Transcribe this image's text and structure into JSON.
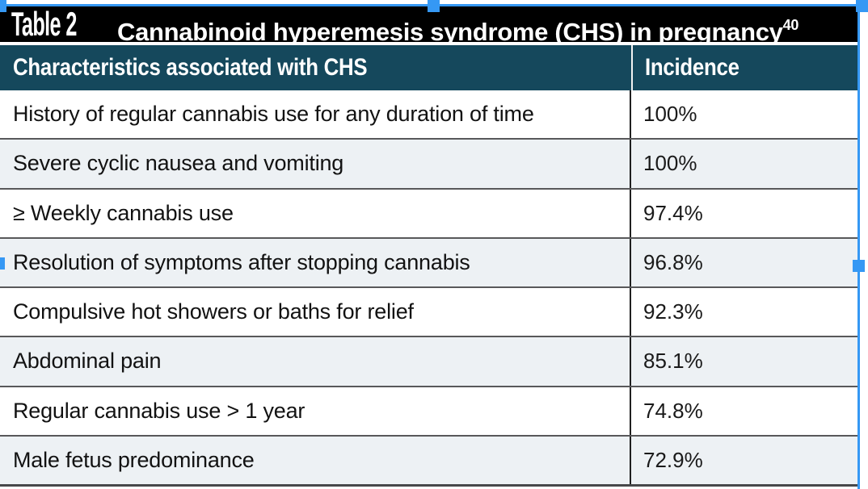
{
  "title_bar": {
    "table_label": "Table 2",
    "title": "Cannabinoid hyperemesis syndrome (CHS) in pregnancy",
    "reference": "40"
  },
  "table": {
    "columns": [
      "Characteristics associated with CHS",
      "Incidence"
    ],
    "rows": [
      {
        "characteristic": "History of regular cannabis use for any duration of time",
        "incidence": "100%"
      },
      {
        "characteristic": "Severe cyclic nausea and vomiting",
        "incidence": "100%"
      },
      {
        "characteristic": "≥ Weekly cannabis use",
        "incidence": "97.4%"
      },
      {
        "characteristic": "Resolution of symptoms after stopping cannabis",
        "incidence": "96.8%"
      },
      {
        "characteristic": "Compulsive hot showers or baths for relief",
        "incidence": "92.3%"
      },
      {
        "characteristic": "Abdominal pain",
        "incidence": "85.1%"
      },
      {
        "characteristic": "Regular cannabis use > 1 year",
        "incidence": "74.8%"
      },
      {
        "characteristic": "Male fetus predominance",
        "incidence": "72.9%"
      }
    ]
  },
  "colors": {
    "selection_blue": "#3598f4",
    "header_teal": "#15485c",
    "alt_row": "#edf1f4",
    "title_bg": "#000000"
  }
}
